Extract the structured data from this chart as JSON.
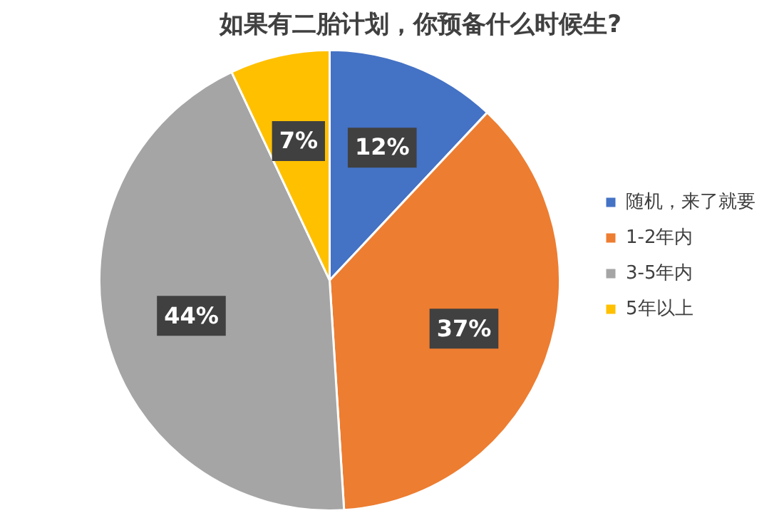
{
  "chart_data": {
    "type": "pie",
    "title": "如果有二胎计划，你预备什么时候生?",
    "categories": [
      "随机，来了就要",
      "1-2年内",
      "3-5年内",
      "5年以上"
    ],
    "values": [
      12,
      37,
      44,
      7
    ],
    "colors": [
      "#4472c4",
      "#ed7d31",
      "#a5a5a5",
      "#ffc000"
    ],
    "value_labels": [
      "12%",
      "37%",
      "44%",
      "7%"
    ],
    "legend": "right"
  }
}
